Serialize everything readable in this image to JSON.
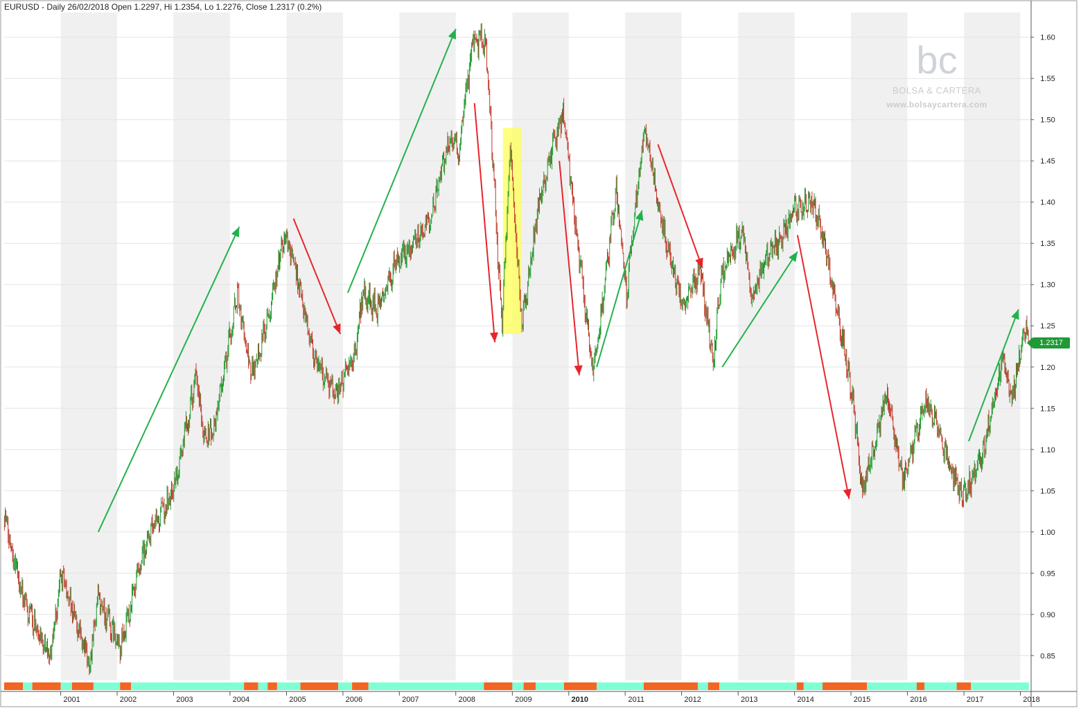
{
  "header": {
    "title": "EURUSD - Daily 26/02/2018 Open 1.2297, Hi 1.2354, Lo 1.2276, Close 1.2317 (0.2%)"
  },
  "watermark": {
    "logo": "bc",
    "name": "BOLSA & CARTERA",
    "url": "www.bolsaycartera.com"
  },
  "colors": {
    "up_bar": "#1e9a2e",
    "down_bar": "#c0392b",
    "trend_up_arrow": "#22b14c",
    "trend_down_arrow": "#e8242b",
    "highlight": "#ffff55",
    "regime_bull": "#7fffd4",
    "regime_bear": "#f26522",
    "year_band_shade": "#f0f0f0",
    "last_price_badge": "#1f9a36"
  },
  "last_price": "1.2317",
  "chart_data": {
    "type": "line",
    "symbol": "EURUSD",
    "timeframe": "Daily",
    "x_axis": {
      "type": "date",
      "range": [
        "2000-01-01",
        "2018-02-26"
      ],
      "tick_labels": [
        "2001",
        "2002",
        "2003",
        "2004",
        "2005",
        "2006",
        "2007",
        "2008",
        "2009",
        "2010",
        "2011",
        "2012",
        "2013",
        "2014",
        "2015",
        "2016",
        "2017",
        "2018"
      ],
      "bold_tick": "2010",
      "alternating_year_shading": true
    },
    "y_axis": {
      "position": "right",
      "range": [
        0.82,
        1.63
      ],
      "tick_labels": [
        "0.85",
        "0.90",
        "0.95",
        "1.00",
        "1.05",
        "1.10",
        "1.15",
        "1.20",
        "1.25",
        "1.30",
        "1.35",
        "1.40",
        "1.45",
        "1.50",
        "1.55",
        "1.60"
      ],
      "grid": true
    },
    "series": [
      {
        "values_key": "close",
        "x": [
          "2000-01-03",
          "2000-05-15",
          "2000-10-26",
          "2001-01-05",
          "2001-07-05",
          "2001-08-30",
          "2002-01-15",
          "2002-02-05",
          "2002-07-15",
          "2003-01-02",
          "2003-05-27",
          "2003-07-10",
          "2003-09-15",
          "2004-02-18",
          "2004-05-14",
          "2004-07-25",
          "2004-11-15",
          "2004-12-30",
          "2005-04-15",
          "2005-06-30",
          "2005-11-15",
          "2006-03-15",
          "2006-05-10",
          "2006-08-15",
          "2006-11-30",
          "2007-04-30",
          "2007-07-23",
          "2007-11-23",
          "2008-01-22",
          "2008-04-22",
          "2008-07-15",
          "2008-10-27",
          "2008-12-18",
          "2009-03-04",
          "2009-06-30",
          "2009-11-25",
          "2010-02-15",
          "2010-06-07",
          "2010-08-10",
          "2010-11-04",
          "2011-01-10",
          "2011-05-03",
          "2011-06-30",
          "2011-09-12",
          "2012-01-13",
          "2012-04-30",
          "2012-07-24",
          "2012-09-15",
          "2013-02-01",
          "2013-03-27",
          "2013-06-17",
          "2013-09-15",
          "2013-12-27",
          "2014-05-08",
          "2014-09-15",
          "2015-01-15",
          "2015-03-16",
          "2015-08-24",
          "2015-11-30",
          "2016-05-03",
          "2016-12-20",
          "2017-04-30",
          "2017-09-08",
          "2017-11-07",
          "2018-01-25",
          "2018-02-26"
        ],
        "close": [
          1.02,
          0.91,
          0.85,
          0.95,
          0.84,
          0.92,
          0.86,
          0.87,
          0.99,
          1.05,
          1.19,
          1.12,
          1.12,
          1.29,
          1.19,
          1.23,
          1.33,
          1.36,
          1.28,
          1.21,
          1.17,
          1.21,
          1.29,
          1.27,
          1.32,
          1.36,
          1.38,
          1.48,
          1.46,
          1.6,
          1.59,
          1.25,
          1.47,
          1.25,
          1.41,
          1.51,
          1.37,
          1.19,
          1.28,
          1.42,
          1.29,
          1.49,
          1.44,
          1.36,
          1.27,
          1.32,
          1.21,
          1.31,
          1.37,
          1.28,
          1.33,
          1.35,
          1.39,
          1.4,
          1.29,
          1.16,
          1.05,
          1.17,
          1.06,
          1.16,
          1.04,
          1.09,
          1.21,
          1.16,
          1.25,
          1.2317
        ]
      }
    ],
    "highlight_range": {
      "x": [
        "2008-11-01",
        "2009-02-28"
      ],
      "y": [
        1.24,
        1.49
      ]
    },
    "trend_arrows": [
      {
        "dir": "up",
        "from": [
          "2001-09-01",
          1.0
        ],
        "to": [
          "2004-03-01",
          1.37
        ]
      },
      {
        "dir": "down",
        "from": [
          "2005-02-15",
          1.38
        ],
        "to": [
          "2005-12-15",
          1.24
        ]
      },
      {
        "dir": "up",
        "from": [
          "2006-02-01",
          1.29
        ],
        "to": [
          "2008-01-01",
          1.61
        ]
      },
      {
        "dir": "down",
        "from": [
          "2008-05-01",
          1.52
        ],
        "to": [
          "2008-09-10",
          1.23
        ]
      },
      {
        "dir": "down",
        "from": [
          "2009-11-01",
          1.45
        ],
        "to": [
          "2010-03-10",
          1.19
        ]
      },
      {
        "dir": "up",
        "from": [
          "2010-07-01",
          1.2
        ],
        "to": [
          "2011-04-20",
          1.39
        ]
      },
      {
        "dir": "down",
        "from": [
          "2011-08-01",
          1.47
        ],
        "to": [
          "2012-05-15",
          1.32
        ]
      },
      {
        "dir": "up",
        "from": [
          "2012-09-20",
          1.2
        ],
        "to": [
          "2014-01-20",
          1.34
        ]
      },
      {
        "dir": "down",
        "from": [
          "2014-01-20",
          1.36
        ],
        "to": [
          "2014-12-20",
          1.04
        ]
      },
      {
        "dir": "up",
        "from": [
          "2017-02-01",
          1.11
        ],
        "to": [
          "2017-12-20",
          1.27
        ]
      }
    ],
    "regime_bar": [
      {
        "from": "2000-01-01",
        "to": "2000-05-01",
        "state": "bear"
      },
      {
        "from": "2000-05-01",
        "to": "2000-07-01",
        "state": "bull"
      },
      {
        "from": "2000-07-01",
        "to": "2001-01-01",
        "state": "bear"
      },
      {
        "from": "2001-01-01",
        "to": "2001-03-15",
        "state": "bull"
      },
      {
        "from": "2001-03-15",
        "to": "2001-08-01",
        "state": "bear"
      },
      {
        "from": "2001-08-01",
        "to": "2002-01-20",
        "state": "bull"
      },
      {
        "from": "2002-01-20",
        "to": "2002-04-01",
        "state": "bear"
      },
      {
        "from": "2002-04-01",
        "to": "2004-04-01",
        "state": "bull"
      },
      {
        "from": "2004-04-01",
        "to": "2004-07-01",
        "state": "bear"
      },
      {
        "from": "2004-07-01",
        "to": "2004-09-01",
        "state": "bull"
      },
      {
        "from": "2004-09-01",
        "to": "2004-11-01",
        "state": "bear"
      },
      {
        "from": "2004-11-01",
        "to": "2005-04-01",
        "state": "bull"
      },
      {
        "from": "2005-04-01",
        "to": "2005-12-01",
        "state": "bear"
      },
      {
        "from": "2005-12-01",
        "to": "2006-03-01",
        "state": "bull"
      },
      {
        "from": "2006-03-01",
        "to": "2006-06-15",
        "state": "bear"
      },
      {
        "from": "2006-06-15",
        "to": "2008-07-01",
        "state": "bull"
      },
      {
        "from": "2008-07-01",
        "to": "2009-01-01",
        "state": "bear"
      },
      {
        "from": "2009-01-01",
        "to": "2009-03-15",
        "state": "bull"
      },
      {
        "from": "2009-03-15",
        "to": "2009-06-01",
        "state": "bear"
      },
      {
        "from": "2009-06-01",
        "to": "2009-12-01",
        "state": "bull"
      },
      {
        "from": "2009-12-01",
        "to": "2010-07-01",
        "state": "bear"
      },
      {
        "from": "2010-07-01",
        "to": "2011-05-01",
        "state": "bull"
      },
      {
        "from": "2011-05-01",
        "to": "2012-04-15",
        "state": "bear"
      },
      {
        "from": "2012-04-15",
        "to": "2012-06-20",
        "state": "bull"
      },
      {
        "from": "2012-06-20",
        "to": "2012-09-01",
        "state": "bear"
      },
      {
        "from": "2012-09-01",
        "to": "2014-01-15",
        "state": "bull"
      },
      {
        "from": "2014-01-15",
        "to": "2014-03-01",
        "state": "bear"
      },
      {
        "from": "2014-03-01",
        "to": "2014-07-01",
        "state": "bull"
      },
      {
        "from": "2014-07-01",
        "to": "2015-04-15",
        "state": "bear"
      },
      {
        "from": "2015-04-15",
        "to": "2016-03-01",
        "state": "bull"
      },
      {
        "from": "2016-03-01",
        "to": "2016-04-20",
        "state": "bear"
      },
      {
        "from": "2016-04-20",
        "to": "2016-11-15",
        "state": "bull"
      },
      {
        "from": "2016-11-15",
        "to": "2017-02-15",
        "state": "bear"
      },
      {
        "from": "2017-02-15",
        "to": "2018-02-26",
        "state": "bull"
      }
    ]
  }
}
